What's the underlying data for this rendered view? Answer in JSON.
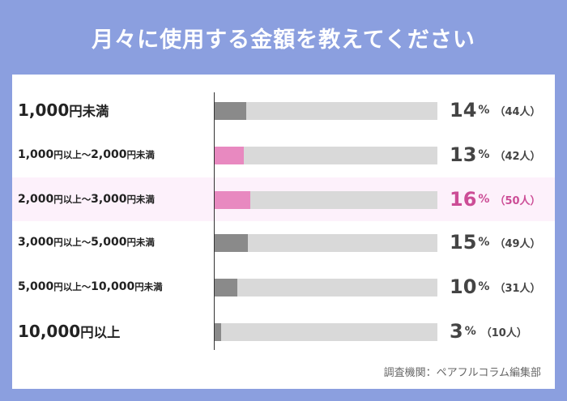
{
  "title": "月々に使用する金額を教えてください",
  "source": "調査機関：ペアフルコラム編集部",
  "colors": {
    "background": "#8b9fdf",
    "bar_default": "#8a8a8a",
    "bar_highlight": "#e889c0",
    "track": "#d9d9d9",
    "text_highlight": "#cc4d96"
  },
  "chart_data": {
    "type": "bar",
    "orientation": "horizontal",
    "categories": [
      "1,000円未満",
      "1,000円以上～2,000円未満",
      "2,000円以上～3,000円未満",
      "3,000円以上～5,000円未満",
      "5,000円以上～10,000円未満",
      "10,000円以上"
    ],
    "values": [
      14,
      13,
      16,
      15,
      10,
      3
    ],
    "counts": [
      44,
      42,
      50,
      49,
      31,
      10
    ],
    "value_labels": [
      "14",
      "13",
      "16",
      "15",
      "10",
      "3"
    ],
    "count_labels": [
      "（44人）",
      "（42人）",
      "（50人）",
      "（49人）",
      "（31人）",
      "（10人）"
    ],
    "unit": "%",
    "highlight_index": [
      1,
      2
    ],
    "xlim": [
      0,
      100
    ]
  }
}
